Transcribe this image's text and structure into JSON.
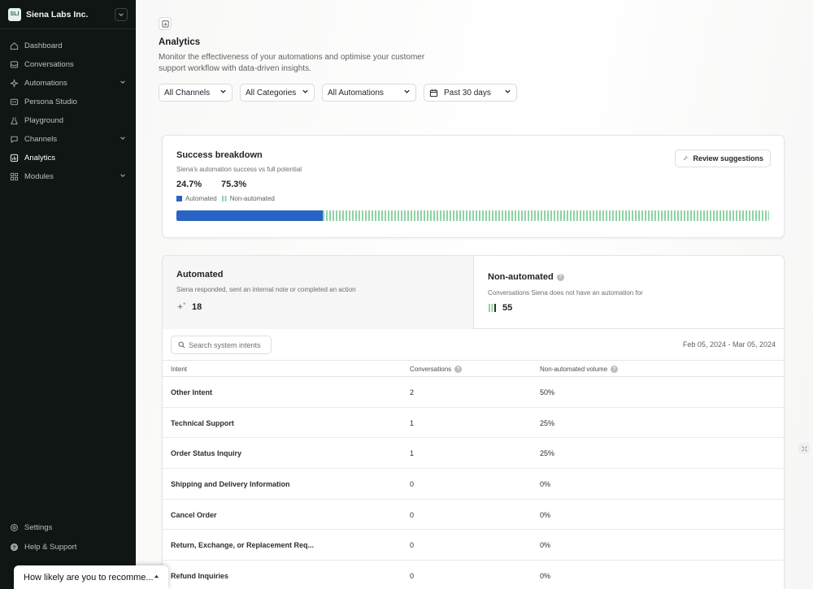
{
  "sidebar": {
    "brand_initials": "SLI",
    "brand_name": "Siena Labs Inc.",
    "items": [
      {
        "label": "Dashboard",
        "icon": "home-icon",
        "has_chevron": false
      },
      {
        "label": "Conversations",
        "icon": "inbox-icon",
        "has_chevron": false
      },
      {
        "label": "Automations",
        "icon": "bolt-icon",
        "has_chevron": true
      },
      {
        "label": "Persona Studio",
        "icon": "persona-icon",
        "has_chevron": false
      },
      {
        "label": "Playground",
        "icon": "flask-icon",
        "has_chevron": false
      },
      {
        "label": "Channels",
        "icon": "chat-icon",
        "has_chevron": true
      },
      {
        "label": "Analytics",
        "icon": "chart-icon",
        "has_chevron": false,
        "active": true
      },
      {
        "label": "Modules",
        "icon": "grid-icon",
        "has_chevron": true
      }
    ],
    "bottom_items": [
      {
        "label": "Settings",
        "icon": "gear-icon"
      },
      {
        "label": "Help & Support",
        "icon": "help-icon"
      }
    ]
  },
  "nps": {
    "question": "How likely are you to recomme..."
  },
  "page": {
    "title": "Analytics",
    "description": "Monitor the effectiveness of your automations and optimise your customer support workflow with data-driven insights."
  },
  "filters": {
    "channels": "All Channels",
    "categories": "All Categories",
    "automations": "All Automations",
    "period": "Past 30 days"
  },
  "success": {
    "title": "Success breakdown",
    "subtitle": "Siena's automation success vs full potential",
    "automated_pct": "24.7%",
    "non_automated_pct": "75.3%",
    "automated_fraction": 0.247,
    "legend_automated": "Automated",
    "legend_non_automated": "Non-automated",
    "review_button": "Review suggestions",
    "colors": {
      "automated": "#2a63c6",
      "non_automated": "#8fd2a5"
    }
  },
  "automated": {
    "title": "Automated",
    "subtitle": "Siena responded, sent an internal note or completed an action",
    "count": "18"
  },
  "non_automated": {
    "title": "Non-automated",
    "subtitle": "Conversations Siena does not have an automation for",
    "count": "55"
  },
  "table": {
    "search_placeholder": "Search system intents",
    "date_range": "Feb 05, 2024 - Mar 05, 2024",
    "columns": [
      "Intent",
      "Conversations",
      "Non-automated volume"
    ],
    "rows": [
      {
        "intent": "Other Intent",
        "conversations": "2",
        "volume": "50%"
      },
      {
        "intent": "Technical Support",
        "conversations": "1",
        "volume": "25%"
      },
      {
        "intent": "Order Status Inquiry",
        "conversations": "1",
        "volume": "25%"
      },
      {
        "intent": "Shipping and Delivery Information",
        "conversations": "0",
        "volume": "0%"
      },
      {
        "intent": "Cancel Order",
        "conversations": "0",
        "volume": "0%"
      },
      {
        "intent": "Return, Exchange, or Replacement Req...",
        "conversations": "0",
        "volume": "0%"
      },
      {
        "intent": "Refund Inquiries",
        "conversations": "0",
        "volume": "0%"
      }
    ]
  }
}
